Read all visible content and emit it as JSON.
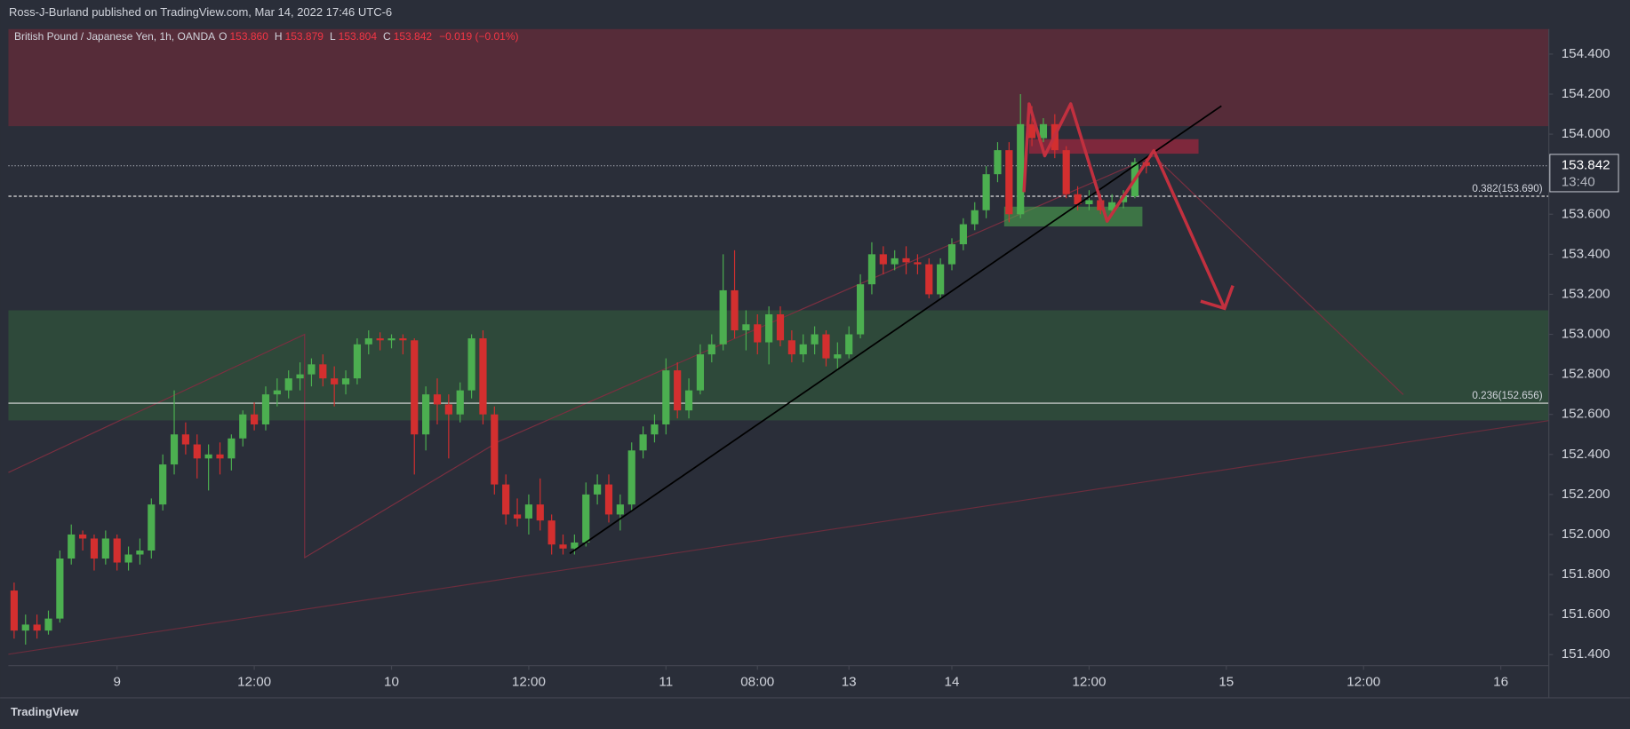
{
  "header": {
    "text": "Ross-J-Burland published on TradingView.com, Mar 14, 2022 17:46 UTC-6"
  },
  "legend": {
    "symbol": "British Pound / Japanese Yen, 1h, OANDA",
    "items": [
      {
        "label": "O",
        "value": "153.860"
      },
      {
        "label": "H",
        "value": "153.879"
      },
      {
        "label": "L",
        "value": "153.804"
      },
      {
        "label": "C",
        "value": "153.842"
      }
    ],
    "change": "−0.019 (−0.01%)"
  },
  "chart_data": {
    "type": "candlestick",
    "x": [
      0,
      1,
      2,
      3,
      4,
      5,
      6,
      7,
      8,
      9,
      10,
      11,
      12,
      13,
      14,
      15,
      16,
      17,
      18,
      19,
      20,
      21,
      22,
      23,
      24,
      25,
      26,
      27,
      28,
      29,
      30,
      31,
      32,
      33,
      34,
      35,
      36,
      37,
      38,
      39,
      40,
      41,
      42,
      43,
      44,
      45,
      46,
      47,
      48,
      49,
      50,
      51,
      52,
      53,
      54,
      55,
      56,
      57,
      58,
      59,
      60,
      61,
      62,
      63,
      64,
      65,
      66,
      67,
      68,
      69,
      70,
      71,
      72,
      73,
      74,
      75,
      76,
      77,
      78,
      79,
      80,
      81,
      82,
      83,
      84,
      85,
      86,
      87,
      88,
      89,
      90,
      91,
      92,
      93,
      94,
      95,
      96,
      97,
      98,
      99
    ],
    "ohlc": [
      [
        151.72,
        151.76,
        151.48,
        151.52
      ],
      [
        151.52,
        151.6,
        151.45,
        151.55
      ],
      [
        151.55,
        151.6,
        151.48,
        151.52
      ],
      [
        151.52,
        151.62,
        151.5,
        151.58
      ],
      [
        151.58,
        151.92,
        151.56,
        151.88
      ],
      [
        151.88,
        152.05,
        151.85,
        152.0
      ],
      [
        152.0,
        152.02,
        151.92,
        151.98
      ],
      [
        151.98,
        152.0,
        151.82,
        151.88
      ],
      [
        151.88,
        152.02,
        151.85,
        151.98
      ],
      [
        151.98,
        152.0,
        151.82,
        151.86
      ],
      [
        151.86,
        151.94,
        151.82,
        151.9
      ],
      [
        151.9,
        151.98,
        151.85,
        151.92
      ],
      [
        151.92,
        152.18,
        151.88,
        152.15
      ],
      [
        152.15,
        152.4,
        152.12,
        152.35
      ],
      [
        152.35,
        152.72,
        152.3,
        152.5
      ],
      [
        152.5,
        152.56,
        152.4,
        152.45
      ],
      [
        152.45,
        152.5,
        152.28,
        152.38
      ],
      [
        152.38,
        152.45,
        152.22,
        152.4
      ],
      [
        152.4,
        152.46,
        152.3,
        152.38
      ],
      [
        152.38,
        152.5,
        152.32,
        152.48
      ],
      [
        152.48,
        152.62,
        152.44,
        152.6
      ],
      [
        152.6,
        152.66,
        152.52,
        152.55
      ],
      [
        152.55,
        152.74,
        152.52,
        152.7
      ],
      [
        152.7,
        152.78,
        152.64,
        152.72
      ],
      [
        152.72,
        152.82,
        152.68,
        152.78
      ],
      [
        152.78,
        152.86,
        152.72,
        152.8
      ],
      [
        152.8,
        152.88,
        152.74,
        152.85
      ],
      [
        152.85,
        152.9,
        152.74,
        152.78
      ],
      [
        152.78,
        152.84,
        152.64,
        152.75
      ],
      [
        152.75,
        152.82,
        152.7,
        152.78
      ],
      [
        152.78,
        152.98,
        152.75,
        152.95
      ],
      [
        152.95,
        153.02,
        152.9,
        152.98
      ],
      [
        152.98,
        153.01,
        152.92,
        152.97
      ],
      [
        152.97,
        153.0,
        152.93,
        152.98
      ],
      [
        152.98,
        153.0,
        152.9,
        152.97
      ],
      [
        152.97,
        152.98,
        152.3,
        152.5
      ],
      [
        152.5,
        152.74,
        152.42,
        152.7
      ],
      [
        152.7,
        152.78,
        152.55,
        152.65
      ],
      [
        152.65,
        152.7,
        152.38,
        152.6
      ],
      [
        152.6,
        152.76,
        152.56,
        152.72
      ],
      [
        152.72,
        153.0,
        152.68,
        152.98
      ],
      [
        152.98,
        153.02,
        152.55,
        152.6
      ],
      [
        152.6,
        152.64,
        152.2,
        152.25
      ],
      [
        152.25,
        152.3,
        152.05,
        152.1
      ],
      [
        152.1,
        152.18,
        152.04,
        152.08
      ],
      [
        152.08,
        152.2,
        152.0,
        152.15
      ],
      [
        152.15,
        152.28,
        152.02,
        152.07
      ],
      [
        152.07,
        152.1,
        151.9,
        151.95
      ],
      [
        151.95,
        152.0,
        151.9,
        151.93
      ],
      [
        151.93,
        152.0,
        151.9,
        151.96
      ],
      [
        151.96,
        152.26,
        151.94,
        152.2
      ],
      [
        152.2,
        152.3,
        152.15,
        152.25
      ],
      [
        152.25,
        152.3,
        152.06,
        152.1
      ],
      [
        152.1,
        152.2,
        152.02,
        152.15
      ],
      [
        152.15,
        152.46,
        152.12,
        152.42
      ],
      [
        152.42,
        152.54,
        152.38,
        152.5
      ],
      [
        152.5,
        152.6,
        152.46,
        152.55
      ],
      [
        152.55,
        152.88,
        152.5,
        152.82
      ],
      [
        152.82,
        152.86,
        152.58,
        152.62
      ],
      [
        152.62,
        152.78,
        152.58,
        152.72
      ],
      [
        152.72,
        152.95,
        152.7,
        152.9
      ],
      [
        152.9,
        153.0,
        152.86,
        152.95
      ],
      [
        152.95,
        153.4,
        152.92,
        153.22
      ],
      [
        153.22,
        153.42,
        152.98,
        153.02
      ],
      [
        153.02,
        153.12,
        152.92,
        153.05
      ],
      [
        153.05,
        153.1,
        152.9,
        152.96
      ],
      [
        152.96,
        153.14,
        152.85,
        153.1
      ],
      [
        153.1,
        153.14,
        152.94,
        152.97
      ],
      [
        152.97,
        153.02,
        152.86,
        152.9
      ],
      [
        152.9,
        153.0,
        152.86,
        152.95
      ],
      [
        152.95,
        153.04,
        152.9,
        153.0
      ],
      [
        153.0,
        153.02,
        152.84,
        152.88
      ],
      [
        152.88,
        152.96,
        152.82,
        152.9
      ],
      [
        152.9,
        153.04,
        152.88,
        153.0
      ],
      [
        153.0,
        153.3,
        152.98,
        153.25
      ],
      [
        153.25,
        153.46,
        153.2,
        153.4
      ],
      [
        153.4,
        153.44,
        153.3,
        153.35
      ],
      [
        153.35,
        153.42,
        153.32,
        153.38
      ],
      [
        153.38,
        153.44,
        153.3,
        153.36
      ],
      [
        153.36,
        153.4,
        153.3,
        153.35
      ],
      [
        153.35,
        153.38,
        153.18,
        153.2
      ],
      [
        153.2,
        153.38,
        153.18,
        153.35
      ],
      [
        153.35,
        153.48,
        153.32,
        153.45
      ],
      [
        153.45,
        153.58,
        153.42,
        153.55
      ],
      [
        153.55,
        153.66,
        153.52,
        153.62
      ],
      [
        153.62,
        153.84,
        153.58,
        153.8
      ],
      [
        153.8,
        153.96,
        153.76,
        153.92
      ],
      [
        153.92,
        153.96,
        153.56,
        153.6
      ],
      [
        153.6,
        154.2,
        153.58,
        154.05
      ],
      [
        154.05,
        154.14,
        153.94,
        153.98
      ],
      [
        153.98,
        154.08,
        153.96,
        154.05
      ],
      [
        154.05,
        154.1,
        153.88,
        153.92
      ],
      [
        153.92,
        153.94,
        153.68,
        153.7
      ],
      [
        153.7,
        153.74,
        153.62,
        153.65
      ],
      [
        153.65,
        153.72,
        153.62,
        153.67
      ],
      [
        153.67,
        153.7,
        153.6,
        153.62
      ],
      [
        153.62,
        153.7,
        153.6,
        153.66
      ],
      [
        153.66,
        153.72,
        153.63,
        153.69
      ],
      [
        153.69,
        153.88,
        153.68,
        153.86
      ],
      [
        153.86,
        153.879,
        153.804,
        153.842
      ]
    ],
    "colors": {
      "up": "#4caf50",
      "down": "#d32f2f"
    },
    "xlim": [
      -0.5,
      134.2
    ],
    "xticks": [
      {
        "value": 9,
        "label": "9"
      },
      {
        "value": 21,
        "label": "12:00"
      },
      {
        "value": 33,
        "label": "10"
      },
      {
        "value": 45,
        "label": "12:00"
      },
      {
        "value": 57,
        "label": "11"
      },
      {
        "value": 65,
        "label": "08:00"
      },
      {
        "value": 73,
        "label": "13"
      },
      {
        "value": 82,
        "label": "14"
      },
      {
        "value": 94,
        "label": "12:00"
      },
      {
        "value": 106,
        "label": "15"
      },
      {
        "value": 118,
        "label": "12:00"
      },
      {
        "value": 130,
        "label": "16"
      }
    ],
    "ylim": [
      151.35,
      154.525
    ],
    "yticks": [
      {
        "value": 151.4,
        "label": "151.400"
      },
      {
        "value": 151.6,
        "label": "151.600"
      },
      {
        "value": 151.8,
        "label": "151.800"
      },
      {
        "value": 152.0,
        "label": "152.000"
      },
      {
        "value": 152.2,
        "label": "152.200"
      },
      {
        "value": 152.4,
        "label": "152.400"
      },
      {
        "value": 152.6,
        "label": "152.600"
      },
      {
        "value": 152.8,
        "label": "152.800"
      },
      {
        "value": 153.0,
        "label": "153.000"
      },
      {
        "value": 153.2,
        "label": "153.200"
      },
      {
        "value": 153.4,
        "label": "153.400"
      },
      {
        "value": 153.6,
        "label": "153.600"
      },
      {
        "value": 153.8,
        "label": "153.800"
      },
      {
        "value": 154.0,
        "label": "154.000"
      },
      {
        "value": 154.2,
        "label": "154.200"
      },
      {
        "value": 154.4,
        "label": "154.400"
      }
    ],
    "grid": false,
    "zones": [
      {
        "from": 154.04,
        "to": 154.525,
        "color": "#5e2b39"
      },
      {
        "from": 152.57,
        "to": 153.12,
        "color": "#2f4d3b"
      }
    ],
    "fib_levels": [
      {
        "value": 153.69,
        "label": "0.382(153.690)"
      },
      {
        "value": 152.656,
        "label": "0.236(152.656)"
      }
    ],
    "last_price": {
      "value": 153.842,
      "countdown": "13:40"
    }
  },
  "footer": {
    "brand": "TradingView"
  }
}
